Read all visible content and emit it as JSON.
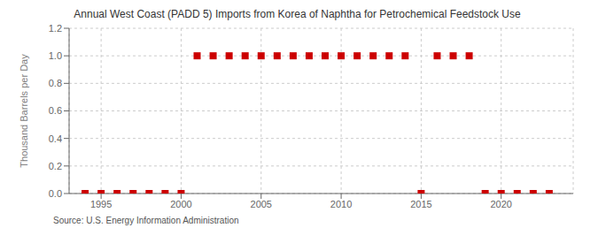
{
  "chart_data": {
    "type": "scatter",
    "title": "Annual West Coast (PADD 5) Imports from Korea of Naphtha for Petrochemical Feedstock Use",
    "y_label": "Thousand Barrels per Day",
    "annotations": [
      "Source: U.S. Energy Information Administration"
    ],
    "x": [
      1994,
      1995,
      1996,
      1997,
      1998,
      1999,
      2000,
      2001,
      2002,
      2003,
      2004,
      2005,
      2006,
      2007,
      2008,
      2009,
      2010,
      2011,
      2012,
      2013,
      2014,
      2015,
      2016,
      2017,
      2018,
      2019,
      2020,
      2021,
      2022,
      2023
    ],
    "values": [
      0.0,
      0.0,
      0.0,
      0.0,
      0.0,
      0.0,
      0.0,
      1.0,
      1.0,
      1.0,
      1.0,
      1.0,
      1.0,
      1.0,
      1.0,
      1.0,
      1.0,
      1.0,
      1.0,
      1.0,
      1.0,
      0.0,
      1.0,
      1.0,
      1.0,
      0.0,
      0.0,
      0.0,
      0.0,
      0.0
    ],
    "color": "#cc0000",
    "marker": "square",
    "xlim": [
      1993.0,
      2024.5
    ],
    "ylim": [
      0.0,
      1.2
    ],
    "xticks": [
      1995,
      2000,
      2005,
      2010,
      2015,
      2020
    ],
    "yticks": [
      {
        "value": 0.0,
        "label": "0.0"
      },
      0.2,
      0.4,
      0.6,
      0.8,
      {
        "value": 1.0,
        "label": "1.0"
      },
      1.2
    ],
    "grid": true
  }
}
